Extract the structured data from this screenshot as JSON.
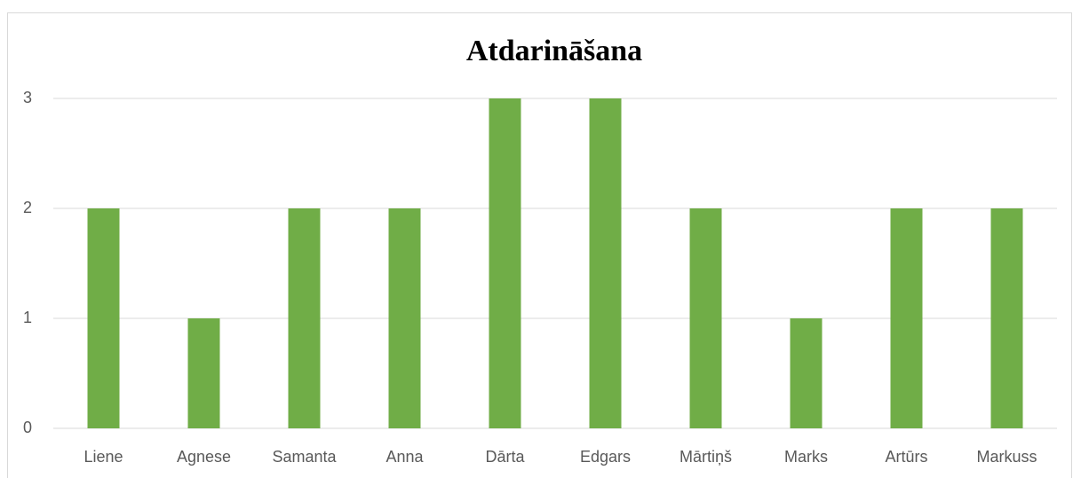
{
  "chart_data": {
    "type": "bar",
    "title": "Atdarināšana",
    "categories": [
      "Liene",
      "Agnese",
      "Samanta",
      "Anna",
      "Dārta",
      "Edgars",
      "Mārtiņš",
      "Marks",
      "Artūrs",
      "Markuss"
    ],
    "values": [
      2,
      1,
      2,
      2,
      3,
      3,
      2,
      1,
      2,
      2
    ],
    "color": "#70ad47",
    "ylim": [
      0,
      3
    ],
    "yticks": [
      0,
      1,
      2,
      3
    ],
    "grid": true
  }
}
